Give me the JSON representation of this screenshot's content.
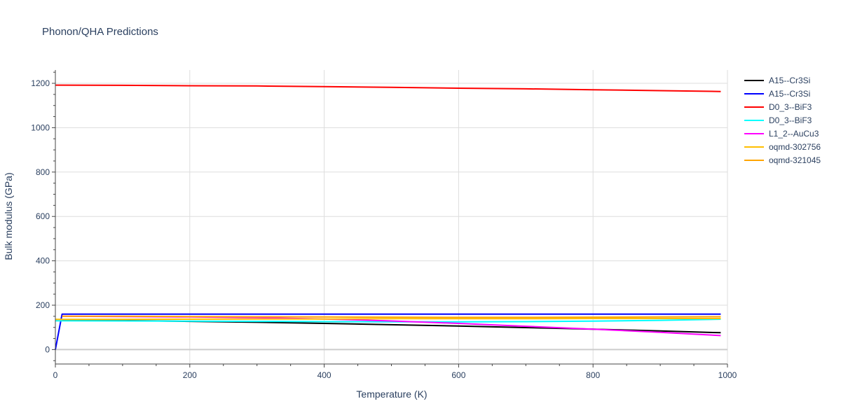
{
  "chart_data": {
    "type": "line",
    "title": "Phonon/QHA Predictions",
    "xlabel": "Temperature (K)",
    "ylabel": "Bulk modulus (GPa)",
    "xlim": [
      0,
      1000
    ],
    "ylim": [
      -65,
      1260
    ],
    "xticks": [
      0,
      200,
      400,
      600,
      800,
      1000
    ],
    "yticks": [
      0,
      200,
      400,
      600,
      800,
      1000,
      1200
    ],
    "grid": true,
    "legend_position": "top-right",
    "series": [
      {
        "name": "A15--Cr3Si",
        "color": "#000000",
        "x": [
          10,
          100,
          200,
          300,
          400,
          500,
          600,
          700,
          800,
          900,
          990
        ],
        "y": [
          133,
          131,
          127,
          123,
          118,
          112,
          106,
          99,
          92,
          84,
          76
        ]
      },
      {
        "name": "A15--Cr3Si",
        "color": "#0000ff",
        "x": [
          0,
          10,
          100,
          200,
          300,
          400,
          500,
          600,
          700,
          800,
          900,
          990
        ],
        "y": [
          0,
          160,
          160,
          160,
          160,
          160,
          160,
          160,
          160,
          160,
          160,
          160
        ]
      },
      {
        "name": "D0_3--BiF3",
        "color": "#ff0000",
        "x": [
          0,
          100,
          200,
          300,
          400,
          500,
          600,
          700,
          800,
          900,
          990
        ],
        "y": [
          1192,
          1191,
          1189,
          1188,
          1185,
          1182,
          1178,
          1175,
          1171,
          1167,
          1163
        ]
      },
      {
        "name": "D0_3--BiF3",
        "color": "#00ffff",
        "x": [
          0,
          100,
          200,
          300,
          400,
          500,
          600,
          700,
          800,
          900,
          990
        ],
        "y": [
          130,
          129,
          128,
          127,
          126,
          125,
          125,
          126,
          128,
          132,
          137
        ]
      },
      {
        "name": "L1_2--AuCu3",
        "color": "#ff00ff",
        "x": [
          10,
          100,
          200,
          300,
          400,
          500,
          600,
          700,
          800,
          900,
          990
        ],
        "y": [
          150,
          149,
          147,
          144,
          138,
          129,
          118,
          105,
          92,
          78,
          63
        ]
      },
      {
        "name": "oqmd-302756",
        "color": "#ffbf00",
        "x": [
          0,
          100,
          200,
          300,
          400,
          500,
          600,
          700,
          800,
          900,
          990
        ],
        "y": [
          136,
          136,
          137,
          138,
          138,
          139,
          139,
          139,
          140,
          140,
          140
        ]
      },
      {
        "name": "oqmd-321045",
        "color": "#ffa500",
        "x": [
          10,
          100,
          200,
          300,
          400,
          500,
          600,
          700,
          800,
          900,
          990
        ],
        "y": [
          150,
          150,
          149,
          148,
          147,
          146,
          145,
          145,
          146,
          147,
          148
        ]
      }
    ]
  }
}
